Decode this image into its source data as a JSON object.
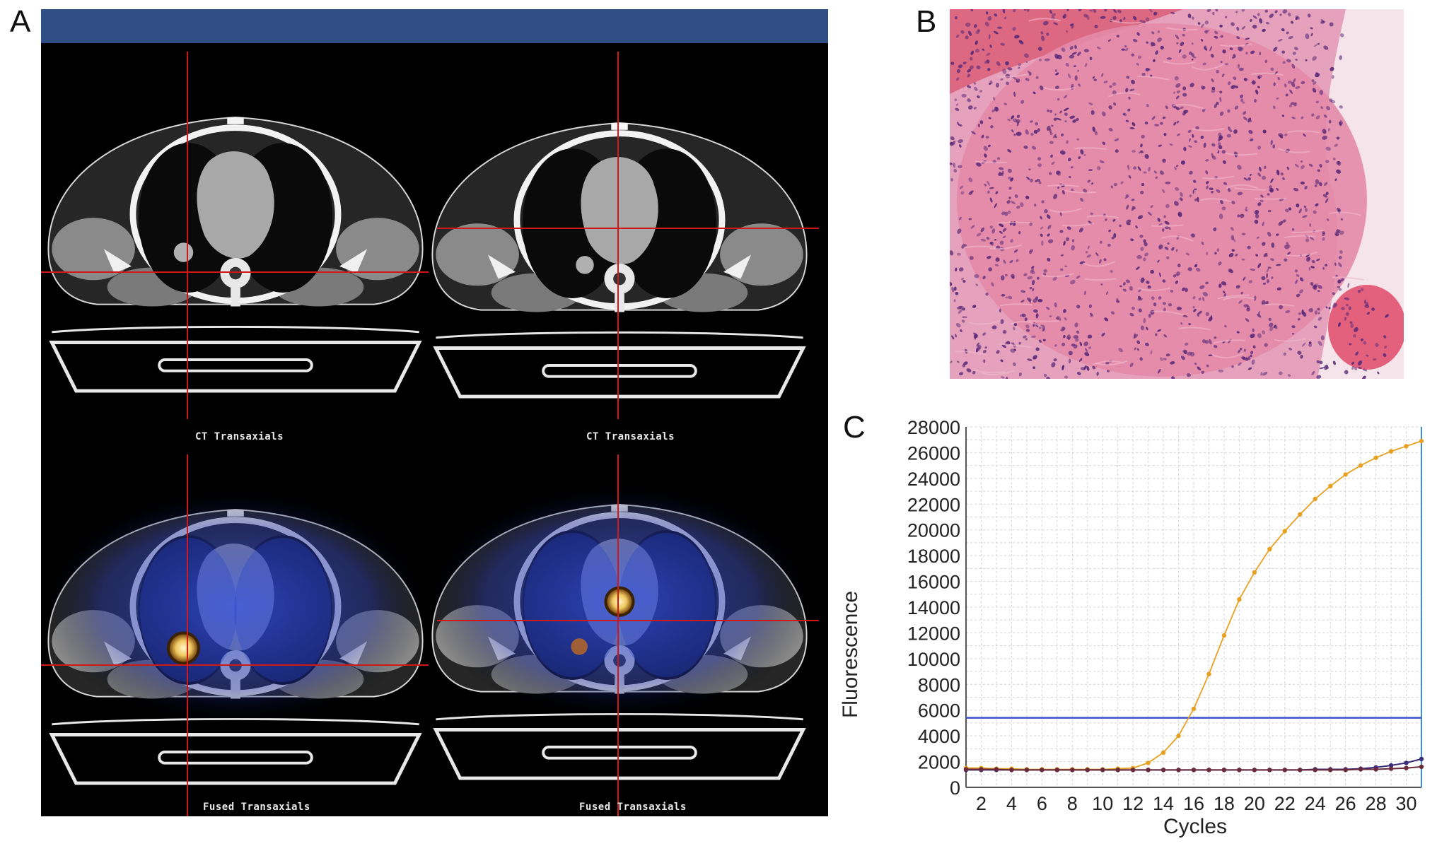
{
  "panels": {
    "a": "A",
    "b": "B",
    "c": "C"
  },
  "scan_labels": {
    "ct_left": "CT Transaxials",
    "ct_right": "CT Transaxials",
    "fused_left": "Fused Transaxials",
    "fused_right": "Fused Transaxials"
  },
  "colors": {
    "topbar": "#2f4e86",
    "crosshair": "#d01818",
    "ct_tissue": "#9a9a9a",
    "pet_blue": "#2a46c8",
    "hotspot": "#f0d070",
    "he_stroma": "#e48aa8",
    "he_nuclei": "#5a2a78",
    "threshold": "#3a50d0",
    "amplification": "#e8a020"
  },
  "chart_data": {
    "type": "line",
    "xlabel": "Cycles",
    "ylabel": "Fluorescence",
    "xlim": [
      1,
      31
    ],
    "ylim": [
      0,
      28000
    ],
    "x_ticks": [
      2,
      4,
      6,
      8,
      10,
      12,
      14,
      16,
      18,
      20,
      22,
      24,
      26,
      28,
      30
    ],
    "y_ticks": [
      0,
      2000,
      4000,
      6000,
      8000,
      10000,
      12000,
      14000,
      16000,
      18000,
      20000,
      22000,
      24000,
      26000,
      28000
    ],
    "grid": true,
    "threshold": 5400,
    "x": [
      1,
      2,
      3,
      4,
      5,
      6,
      7,
      8,
      9,
      10,
      11,
      12,
      13,
      14,
      15,
      16,
      17,
      18,
      19,
      20,
      21,
      22,
      23,
      24,
      25,
      26,
      27,
      28,
      29,
      30,
      31
    ],
    "series": [
      {
        "color": "#e8a020",
        "values": [
          1500,
          1500,
          1450,
          1450,
          1400,
          1400,
          1400,
          1400,
          1400,
          1400,
          1450,
          1500,
          1900,
          2700,
          4000,
          6100,
          8800,
          11800,
          14600,
          16700,
          18500,
          19900,
          21200,
          22400,
          23400,
          24300,
          25000,
          25600,
          26100,
          26500,
          26900
        ]
      },
      {
        "color": "#3a2a7a",
        "values": [
          1350,
          1350,
          1350,
          1350,
          1350,
          1350,
          1350,
          1350,
          1350,
          1350,
          1350,
          1350,
          1350,
          1350,
          1350,
          1350,
          1350,
          1350,
          1350,
          1350,
          1350,
          1350,
          1350,
          1400,
          1400,
          1400,
          1450,
          1550,
          1700,
          1900,
          2200
        ]
      },
      {
        "color": "#6a2a3a",
        "values": [
          1400,
          1400,
          1400,
          1350,
          1350,
          1350,
          1350,
          1350,
          1350,
          1350,
          1350,
          1350,
          1350,
          1350,
          1350,
          1350,
          1350,
          1350,
          1350,
          1350,
          1350,
          1350,
          1350,
          1350,
          1350,
          1350,
          1400,
          1400,
          1450,
          1500,
          1600
        ]
      }
    ]
  }
}
